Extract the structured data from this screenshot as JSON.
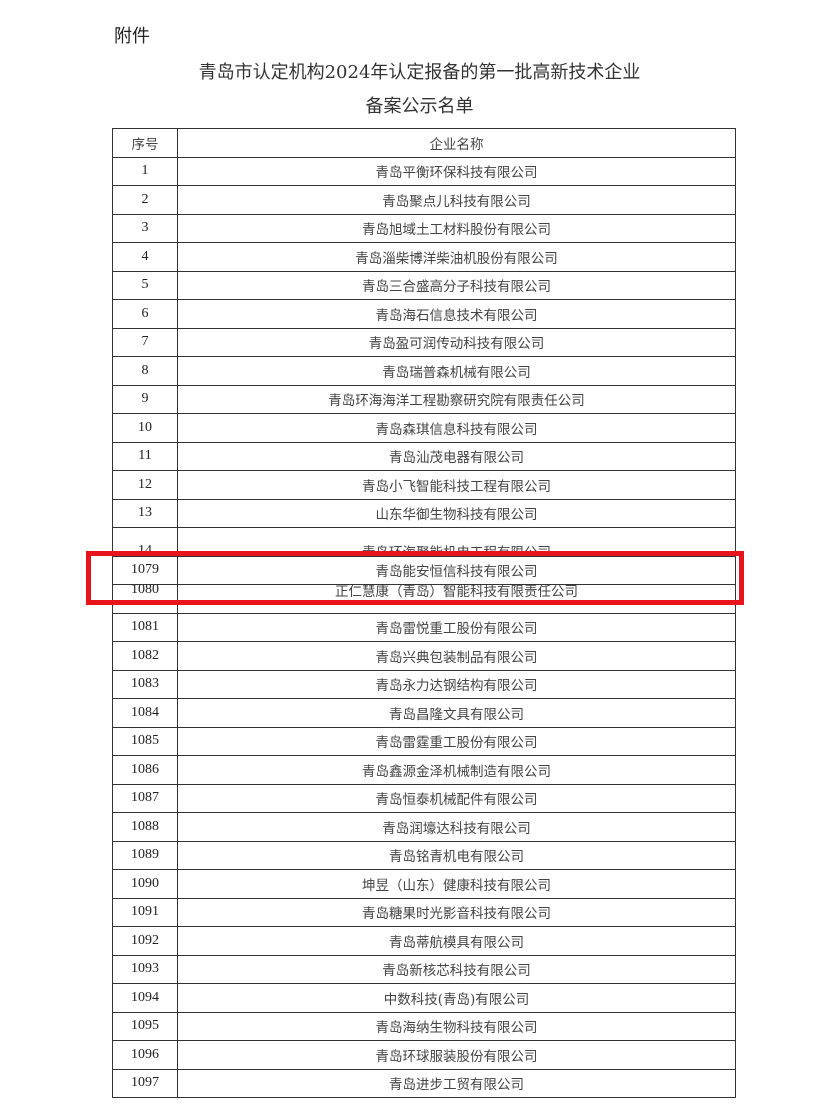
{
  "attachment_label": "附件",
  "title_line1": "青岛市认定机构2024年认定报备的第一批高新技术企业",
  "title_line2": "备案公示名单",
  "table": {
    "headers": [
      "序号",
      "企业名称"
    ],
    "rows": [
      {
        "no": "1",
        "name": "青岛平衡环保科技有限公司"
      },
      {
        "no": "2",
        "name": "青岛聚点儿科技有限公司"
      },
      {
        "no": "3",
        "name": "青岛旭域土工材料股份有限公司"
      },
      {
        "no": "4",
        "name": "青岛淄柴博洋柴油机股份有限公司"
      },
      {
        "no": "5",
        "name": "青岛三合盛高分子科技有限公司"
      },
      {
        "no": "6",
        "name": "青岛海石信息技术有限公司"
      },
      {
        "no": "7",
        "name": "青岛盈可润传动科技有限公司"
      },
      {
        "no": "8",
        "name": "青岛瑞普森机械有限公司"
      },
      {
        "no": "9",
        "name": "青岛环海海洋工程勘察研究院有限责任公司"
      },
      {
        "no": "10",
        "name": "青岛森琪信息科技有限公司"
      },
      {
        "no": "11",
        "name": "青岛汕茂电器有限公司"
      },
      {
        "no": "12",
        "name": "青岛小飞智能科技工程有限公司"
      },
      {
        "no": "13",
        "name": "山东华御生物科技有限公司"
      },
      {
        "no": "14",
        "name": "青岛环海聚能机电工程有限公司"
      },
      {
        "no": "1079",
        "name": "青岛能安恒信科技有限公司"
      },
      {
        "no": "1080",
        "name": "正仁慧康（青岛）智能科技有限责任公司"
      },
      {
        "no": "1081",
        "name": "青岛雷悦重工股份有限公司"
      },
      {
        "no": "1082",
        "name": "青岛兴典包装制品有限公司"
      },
      {
        "no": "1083",
        "name": "青岛永力达钢结构有限公司"
      },
      {
        "no": "1084",
        "name": "青岛昌隆文具有限公司"
      },
      {
        "no": "1085",
        "name": "青岛雷霆重工股份有限公司"
      },
      {
        "no": "1086",
        "name": "青岛鑫源金泽机械制造有限公司"
      },
      {
        "no": "1087",
        "name": "青岛恒泰机械配件有限公司"
      },
      {
        "no": "1088",
        "name": "青岛润壕达科技有限公司"
      },
      {
        "no": "1089",
        "name": "青岛铭青机电有限公司"
      },
      {
        "no": "1090",
        "name": "坤昱（山东）健康科技有限公司"
      },
      {
        "no": "1091",
        "name": "青岛糖果时光影音科技有限公司"
      },
      {
        "no": "1092",
        "name": "青岛蒂航模具有限公司"
      },
      {
        "no": "1093",
        "name": "青岛新核芯科技有限公司"
      },
      {
        "no": "1094",
        "name": "中数科技(青岛)有限公司"
      },
      {
        "no": "1095",
        "name": "青岛海纳生物科技有限公司"
      },
      {
        "no": "1096",
        "name": "青岛环球服装股份有限公司"
      },
      {
        "no": "1097",
        "name": "青岛进步工贸有限公司"
      }
    ]
  },
  "highlight": {
    "row_no": "1079",
    "color": "#e8141b"
  }
}
